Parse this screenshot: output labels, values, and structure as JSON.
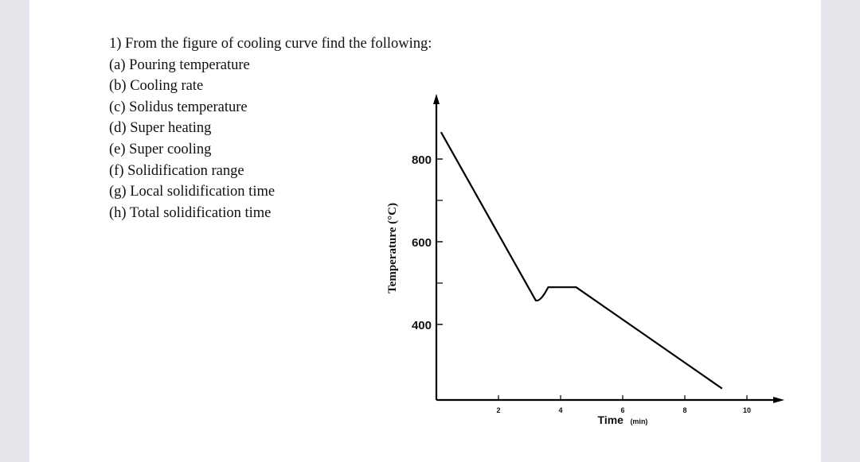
{
  "question": {
    "title": "1) From the figure of cooling curve find the following:",
    "items": [
      "(a) Pouring temperature",
      "(b) Cooling rate",
      "(c) Solidus temperature",
      "(d) Super heating",
      "(e) Super cooling",
      "(f) Solidification range",
      "(g) Local solidification time",
      "(h) Total solidification time"
    ]
  },
  "chart_data": {
    "type": "line",
    "xlabel": "Time",
    "xunit": "(min)",
    "ylabel": "Temperature (°C)",
    "x_ticks": [
      2,
      4,
      6,
      8,
      10
    ],
    "y_ticks": [
      400,
      600,
      800
    ],
    "series": [
      {
        "points": [
          {
            "x": 0.15,
            "y": 865
          },
          {
            "x": 3.2,
            "y": 458
          },
          {
            "x": 3.6,
            "y": 490
          },
          {
            "x": 4.5,
            "y": 490
          },
          {
            "x": 9.2,
            "y": 245
          }
        ]
      }
    ],
    "colors": {
      "line": "#000000",
      "axis": "#000000"
    }
  }
}
